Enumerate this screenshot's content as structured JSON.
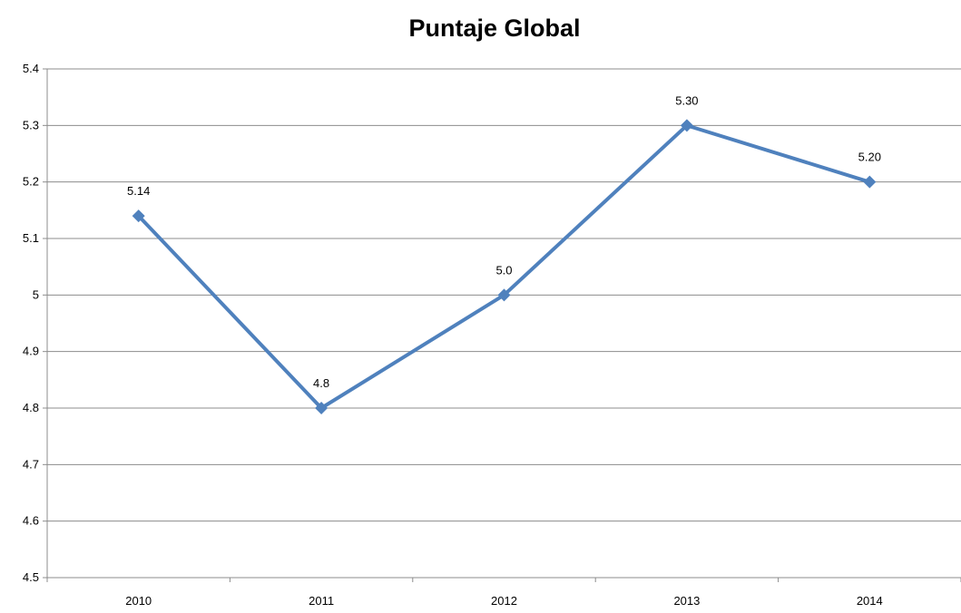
{
  "chart_data": {
    "type": "line",
    "title": "Puntaje Global",
    "xlabel": "",
    "ylabel": "",
    "categories": [
      "2010",
      "2011",
      "2012",
      "2013",
      "2014"
    ],
    "series": [
      {
        "values": [
          5.14,
          4.8,
          5.0,
          5.3,
          5.2
        ],
        "data_labels": [
          "5.14",
          "4.8",
          "5.0",
          "5.30",
          "5.20"
        ],
        "marker": "diamond"
      }
    ],
    "ylim": [
      4.5,
      5.4
    ],
    "y_ticks": [
      4.5,
      4.6,
      4.7,
      4.8,
      4.9,
      5,
      5.1,
      5.2,
      5.3,
      5.4
    ],
    "y_tick_labels": [
      "4.5",
      "4.6",
      "4.7",
      "4.8",
      "4.9",
      "5",
      "5.1",
      "5.2",
      "5.3",
      "5.4"
    ],
    "grid": true,
    "legend": "none",
    "colors": {
      "series": "#4f81bd",
      "grid": "#8c8c8c"
    }
  }
}
